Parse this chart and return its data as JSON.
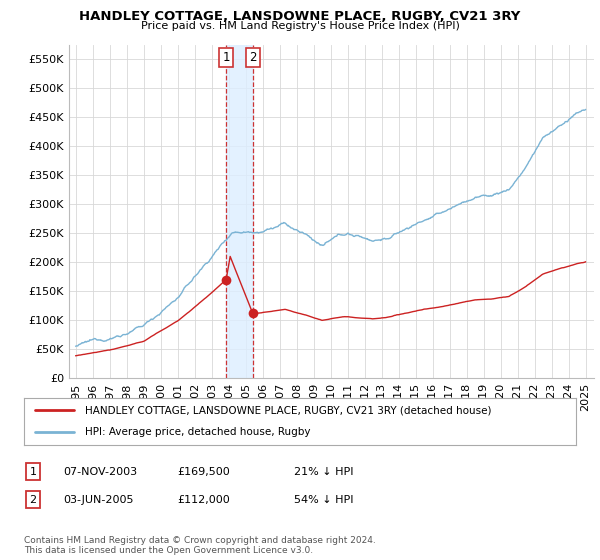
{
  "title": "HANDLEY COTTAGE, LANSDOWNE PLACE, RUGBY, CV21 3RY",
  "subtitle": "Price paid vs. HM Land Registry's House Price Index (HPI)",
  "legend_entries": [
    "HANDLEY COTTAGE, LANSDOWNE PLACE, RUGBY, CV21 3RY (detached house)",
    "HPI: Average price, detached house, Rugby"
  ],
  "table_rows": [
    {
      "num": "1",
      "date": "07-NOV-2003",
      "price": "£169,500",
      "pct": "21% ↓ HPI"
    },
    {
      "num": "2",
      "date": "03-JUN-2005",
      "price": "£112,000",
      "pct": "54% ↓ HPI"
    }
  ],
  "footnote": "Contains HM Land Registry data © Crown copyright and database right 2024.\nThis data is licensed under the Open Government Licence v3.0.",
  "transaction_1": {
    "date_num": 2003.85,
    "price": 169500,
    "label": "1"
  },
  "transaction_2": {
    "date_num": 2005.42,
    "price": 112000,
    "label": "2"
  },
  "ylim": [
    0,
    575000
  ],
  "yticks": [
    0,
    50000,
    100000,
    150000,
    200000,
    250000,
    300000,
    350000,
    400000,
    450000,
    500000,
    550000
  ],
  "hpi_color": "#7ab3d4",
  "price_color": "#cc2222",
  "bg_color": "#ffffff",
  "grid_color": "#d8d8d8"
}
